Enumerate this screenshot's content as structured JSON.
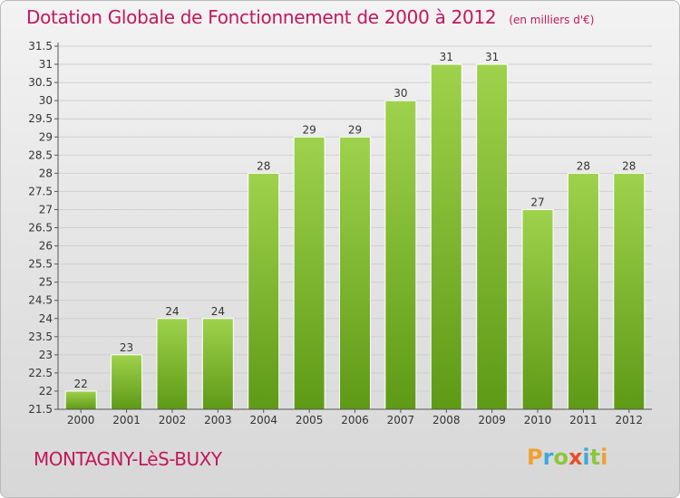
{
  "title": "Dotation Globale de Fonctionnement de 2000 à 2012",
  "unit_note": "(en milliers d'€)",
  "commune": "MONTAGNY-LèS-BUXY",
  "logo": {
    "text": "Proxiti",
    "letters": [
      {
        "ch": "P",
        "color": "#f0a030"
      },
      {
        "ch": "r",
        "color": "#3fa9dc"
      },
      {
        "ch": "o",
        "color": "#8cc63f"
      },
      {
        "ch": "x",
        "color": "#e8502a"
      },
      {
        "ch": "i",
        "color": "#3fa9dc"
      },
      {
        "ch": "t",
        "color": "#8cc63f"
      },
      {
        "ch": "i",
        "color": "#f0a030"
      }
    ]
  },
  "colors": {
    "accent": "#c2185b",
    "bar_top": "#9fd24c",
    "bar_bottom": "#5e9a16",
    "grid": "#cfcfcf",
    "axis_text": "#333333"
  },
  "chart_data": {
    "type": "bar",
    "categories": [
      "2000",
      "2001",
      "2002",
      "2003",
      "2004",
      "2005",
      "2006",
      "2007",
      "2008",
      "2009",
      "2010",
      "2011",
      "2012"
    ],
    "values": [
      22,
      23,
      24,
      24,
      28,
      29,
      29,
      30,
      31,
      31,
      27,
      28,
      28
    ],
    "title": "Dotation Globale de Fonctionnement de 2000 à 2012",
    "xlabel": "",
    "ylabel": "",
    "ylim": [
      21.5,
      31.5
    ],
    "ytick_step": 0.5,
    "yticks": [
      "21.5",
      "22",
      "22.5",
      "23",
      "23.5",
      "24",
      "24.5",
      "25",
      "25.5",
      "26",
      "26.5",
      "27",
      "27.5",
      "28",
      "28.5",
      "29",
      "29.5",
      "30",
      "30.5",
      "31",
      "31.5"
    ],
    "grid": true,
    "legend": "none"
  }
}
